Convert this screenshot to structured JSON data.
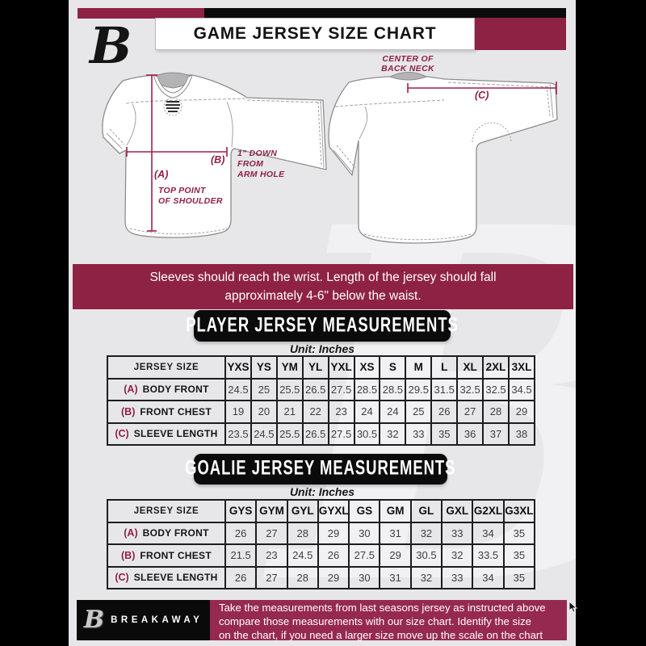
{
  "colors": {
    "maroon": "#8e2245",
    "footer_maroon": "#96294f",
    "black": "#0b0b0b",
    "background": "#e7e7e9",
    "measure_line": "#a02048"
  },
  "header": {
    "title": "GAME JERSEY SIZE CHART",
    "logo_letter": "B"
  },
  "diagram": {
    "center_back_neck_line1": "CENTER OF",
    "center_back_neck_line2": "BACK NECK",
    "marker_a": "(A)",
    "marker_b": "(B)",
    "marker_c": "(C)",
    "top_point_line1": "TOP POINT",
    "top_point_line2": "OF SHOULDER",
    "armhole_line1": "1\" DOWN",
    "armhole_line2": "FROM",
    "armhole_line3": "ARM HOLE"
  },
  "banner": {
    "line1": "Sleeves should reach the wrist. Length of the jersey should fall",
    "line2": "approximately 4-6\" below the waist."
  },
  "player_section": {
    "title": "PLAYER JERSEY MEASUREMENTS",
    "unit": "Unit: Inches",
    "table": {
      "corner": "JERSEY SIZE",
      "sizes": [
        "YXS",
        "YS",
        "YM",
        "YL",
        "YXL",
        "XS",
        "S",
        "M",
        "L",
        "XL",
        "2XL",
        "3XL"
      ],
      "rows": [
        {
          "marker": "(A)",
          "label": "BODY FRONT",
          "values": [
            "24.5",
            "25",
            "25.5",
            "26.5",
            "27.5",
            "28.5",
            "28.5",
            "29.5",
            "31.5",
            "32.5",
            "32.5",
            "34.5"
          ]
        },
        {
          "marker": "(B)",
          "label": "FRONT CHEST",
          "values": [
            "19",
            "20",
            "21",
            "22",
            "23",
            "24",
            "24",
            "25",
            "26",
            "27",
            "28",
            "29"
          ]
        },
        {
          "marker": "(C)",
          "label": "SLEEVE LENGTH",
          "values": [
            "23.5",
            "24.5",
            "25.5",
            "26.5",
            "27.5",
            "30.5",
            "32",
            "33",
            "35",
            "36",
            "37",
            "38"
          ]
        }
      ]
    }
  },
  "goalie_section": {
    "title": "GOALIE JERSEY MEASUREMENTS",
    "unit": "Unit: Inches",
    "table": {
      "corner": "JERSEY SIZE",
      "sizes": [
        "GYS",
        "GYM",
        "GYL",
        "GYXL",
        "GS",
        "GM",
        "GL",
        "GXL",
        "G2XL",
        "G3XL"
      ],
      "rows": [
        {
          "marker": "(A)",
          "label": "BODY FRONT",
          "values": [
            "26",
            "27",
            "28",
            "29",
            "30",
            "31",
            "32",
            "33",
            "34",
            "35"
          ]
        },
        {
          "marker": "(B)",
          "label": "FRONT CHEST",
          "values": [
            "21.5",
            "23",
            "24.5",
            "26",
            "27.5",
            "29",
            "30.5",
            "32",
            "33.5",
            "35"
          ]
        },
        {
          "marker": "(C)",
          "label": "SLEEVE LENGTH",
          "values": [
            "26",
            "27",
            "28",
            "29",
            "30",
            "31",
            "32",
            "33",
            "34",
            "35"
          ]
        }
      ]
    }
  },
  "footer": {
    "brand": "BREAKAWAY",
    "note_line1": "Take the measurements from last seasons jersey as instructed above",
    "note_line2": "compare those measurements  with our size chart. Identify the size",
    "note_line3": "on the chart, if you need a larger size move up the scale on the chart"
  }
}
